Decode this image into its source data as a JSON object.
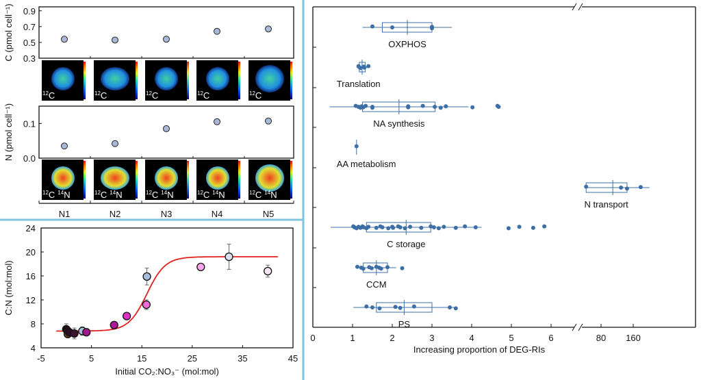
{
  "chart_data": [
    {
      "type": "scatter",
      "id": "carbon",
      "ylabel": "C (pmol cell⁻¹)",
      "categories": [
        "N1",
        "N2",
        "N3",
        "N4",
        "N5"
      ],
      "values": [
        0.54,
        0.53,
        0.54,
        0.64,
        0.67
      ],
      "errors": [
        0.03,
        0.03,
        0.03,
        0.04,
        0.04
      ],
      "yticks": [
        "0.9",
        "0.7",
        "0.5",
        "0.3"
      ],
      "ylim": [
        0.3,
        0.95
      ],
      "image_labels": [
        "12C",
        "12C",
        "12C",
        "12C",
        "12C"
      ]
    },
    {
      "type": "scatter",
      "id": "nitrogen",
      "ylabel": "N (pmol cell⁻¹)",
      "categories": [
        "N1",
        "N2",
        "N3",
        "N4",
        "N5"
      ],
      "values": [
        0.035,
        0.042,
        0.085,
        0.105,
        0.107
      ],
      "errors": [
        0.002,
        0.002,
        0.008,
        0.008,
        0.004
      ],
      "yticks": [
        "0.1",
        "0.0"
      ],
      "ylim": [
        0,
        0.15
      ],
      "image_labels": [
        "12C 14N",
        "12C 14N",
        "12C 14N",
        "12C 14N",
        "12C 14N"
      ]
    },
    {
      "type": "scatter",
      "id": "cn_ratio",
      "xlabel": "Initial CO₂:NO₃⁻ (mol:mol)",
      "ylabel": "C:N (mol:mol)",
      "xlim": [
        -5,
        45
      ],
      "ylim": [
        4,
        24
      ],
      "xticks": [
        "-5",
        "5",
        "15",
        "25",
        "35",
        "45"
      ],
      "yticks": [
        "24",
        "20",
        "16",
        "12",
        "8",
        "4"
      ],
      "points": [
        {
          "x": 0.0,
          "y": 7.1,
          "err": 0.9,
          "color": "#1a0a10"
        },
        {
          "x": 0.2,
          "y": 6.9,
          "err": 0.6,
          "color": "#2a1418"
        },
        {
          "x": 0.3,
          "y": 6.3,
          "err": 0.6,
          "color": "#6a3a1a"
        },
        {
          "x": 0.6,
          "y": 6.6,
          "err": 0.5,
          "color": "#2e0a28"
        },
        {
          "x": 1.6,
          "y": 6.4,
          "err": 0.9,
          "color": "#3a1030"
        },
        {
          "x": 3.2,
          "y": 6.8,
          "err": 0.7,
          "color": "#a9bedc"
        },
        {
          "x": 4.0,
          "y": 6.6,
          "err": 0.3,
          "color": "#a0188c"
        },
        {
          "x": 9.5,
          "y": 7.8,
          "err": 0.3,
          "color": "#b0189c"
        },
        {
          "x": 12.0,
          "y": 9.3,
          "err": 0.3,
          "color": "#e030c8"
        },
        {
          "x": 15.9,
          "y": 11.2,
          "err": 0.8,
          "color": "#f06ad8"
        },
        {
          "x": 16.0,
          "y": 15.9,
          "err": 1.4,
          "color": "#a9bedc"
        },
        {
          "x": 26.7,
          "y": 17.5,
          "err": 0.3,
          "color": "#f8a8e8"
        },
        {
          "x": 32.3,
          "y": 19.2,
          "err": 2.1,
          "color": "#d8e2f0"
        },
        {
          "x": 40.0,
          "y": 16.8,
          "err": 1.0,
          "color": "#f8e6f4"
        }
      ],
      "fit": {
        "low": 6.8,
        "high": 19.2,
        "mid": 16,
        "k": 0.55,
        "xrange": [
          -2,
          42
        ],
        "color": "#e02020"
      }
    },
    {
      "type": "boxplot",
      "id": "deg_ri",
      "xlabel": "Increasing proportion of DEG-RIs",
      "xticks_linear": [
        "0",
        "1",
        "2",
        "3",
        "4",
        "5",
        "6"
      ],
      "xticks_log": [
        "80",
        "160"
      ],
      "color": "#3d6fa6",
      "groups": [
        {
          "label": "OXPHOS",
          "q1": 1.75,
          "median": 2.38,
          "q3": 3.0,
          "min": 1.25,
          "max": 3.5,
          "points": [
            1.5,
            2.0,
            3.0,
            3.0
          ]
        },
        {
          "label": "Translation",
          "q1": 1.17,
          "median": 1.24,
          "q3": 1.32,
          "min": 1.1,
          "max": 1.4,
          "points": [
            1.15,
            1.17,
            1.2,
            1.28,
            1.3,
            1.4
          ]
        },
        {
          "label": "NA synthesis",
          "q1": 1.25,
          "median": 2.17,
          "q3": 3.08,
          "min": 0.42,
          "max": 3.92,
          "points": [
            1.08,
            1.15,
            1.2,
            1.23,
            1.27,
            1.33,
            1.5,
            1.5,
            2.4,
            2.4,
            2.77,
            3.07,
            3.22,
            3.35,
            4.02,
            4.65,
            4.68
          ]
        },
        {
          "label": "AA metabolism",
          "q1": 1.1,
          "median": 1.1,
          "q3": 1.1,
          "min": 1.1,
          "max": 1.1,
          "points": [
            1.1
          ]
        },
        {
          "label": "N transport",
          "scale": "log",
          "q1": 58,
          "median": 103,
          "q3": 140,
          "min": 58,
          "max": 227,
          "points": [
            58,
            123,
            140,
            188
          ]
        },
        {
          "label": "C storage",
          "q1": 1.35,
          "median": 2.35,
          "q3": 2.97,
          "min": 0.45,
          "max": 4.25,
          "points": [
            1.02,
            1.05,
            1.1,
            1.15,
            1.2,
            1.25,
            1.28,
            1.35,
            1.4,
            1.6,
            1.7,
            1.75,
            1.9,
            2.0,
            2.02,
            2.15,
            2.2,
            2.32,
            2.45,
            2.73,
            2.97,
            3.05,
            3.17,
            3.3,
            3.6,
            3.83,
            4.1,
            4.93,
            5.2,
            5.55,
            5.83
          ]
        },
        {
          "label": "CCM",
          "q1": 1.27,
          "median": 1.6,
          "q3": 1.88,
          "min": 1.1,
          "max": 2.1,
          "points": [
            1.12,
            1.22,
            1.27,
            1.42,
            1.48,
            1.6,
            1.67,
            1.72,
            1.88,
            2.25
          ]
        },
        {
          "label": "PS",
          "q1": 1.6,
          "median": 2.3,
          "q3": 3.0,
          "min": 1.02,
          "max": 3.6,
          "points": [
            1.35,
            1.5,
            1.68,
            2.08,
            2.2,
            2.55,
            3.45,
            3.6
          ]
        }
      ]
    }
  ],
  "divider_color": "#7ec4e0"
}
